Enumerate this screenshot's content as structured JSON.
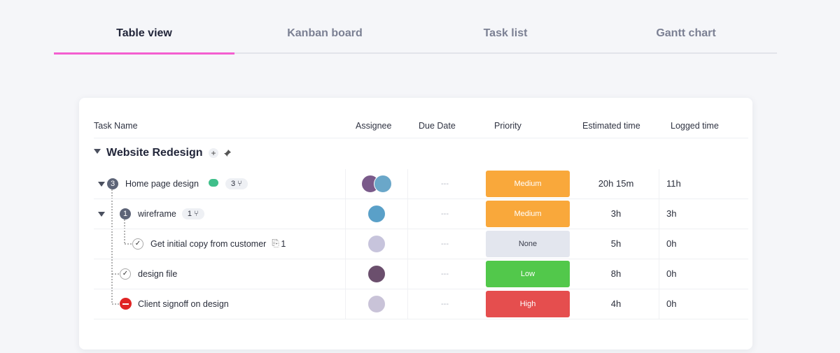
{
  "tabs": [
    {
      "label": "Table view",
      "active": true
    },
    {
      "label": "Kanban board"
    },
    {
      "label": "Task list"
    },
    {
      "label": "Gantt chart"
    }
  ],
  "table": {
    "columns": [
      "Task Name",
      "Assignee",
      "Due Date",
      "Priority",
      "Estimated time",
      "Logged time"
    ],
    "group": "Website Redesign",
    "rows": [
      {
        "count": "3",
        "name": "Home page design",
        "subtasks": "3",
        "due": "---",
        "priority": "Medium",
        "priority_color": "#f9a83b",
        "estimated": "20h 15m",
        "logged": "11h"
      },
      {
        "count": "1",
        "name": "wireframe",
        "subtasks": "1",
        "due": "---",
        "priority": "Medium",
        "priority_color": "#f9a83b",
        "estimated": "3h",
        "logged": "3h"
      },
      {
        "status": "done",
        "name": "Get initial copy from customer",
        "attachments": "1",
        "due": "---",
        "priority": "None",
        "priority_color": "#e3e6ee",
        "estimated": "5h",
        "logged": "0h"
      },
      {
        "status": "done",
        "name": "design file",
        "due": "---",
        "priority": "Low",
        "priority_color": "#52c84b",
        "estimated": "8h",
        "logged": "0h"
      },
      {
        "status": "blocked",
        "name": "Client signoff on design",
        "due": "---",
        "priority": "High",
        "priority_color": "#e54e4e",
        "estimated": "4h",
        "logged": "0h"
      }
    ]
  }
}
